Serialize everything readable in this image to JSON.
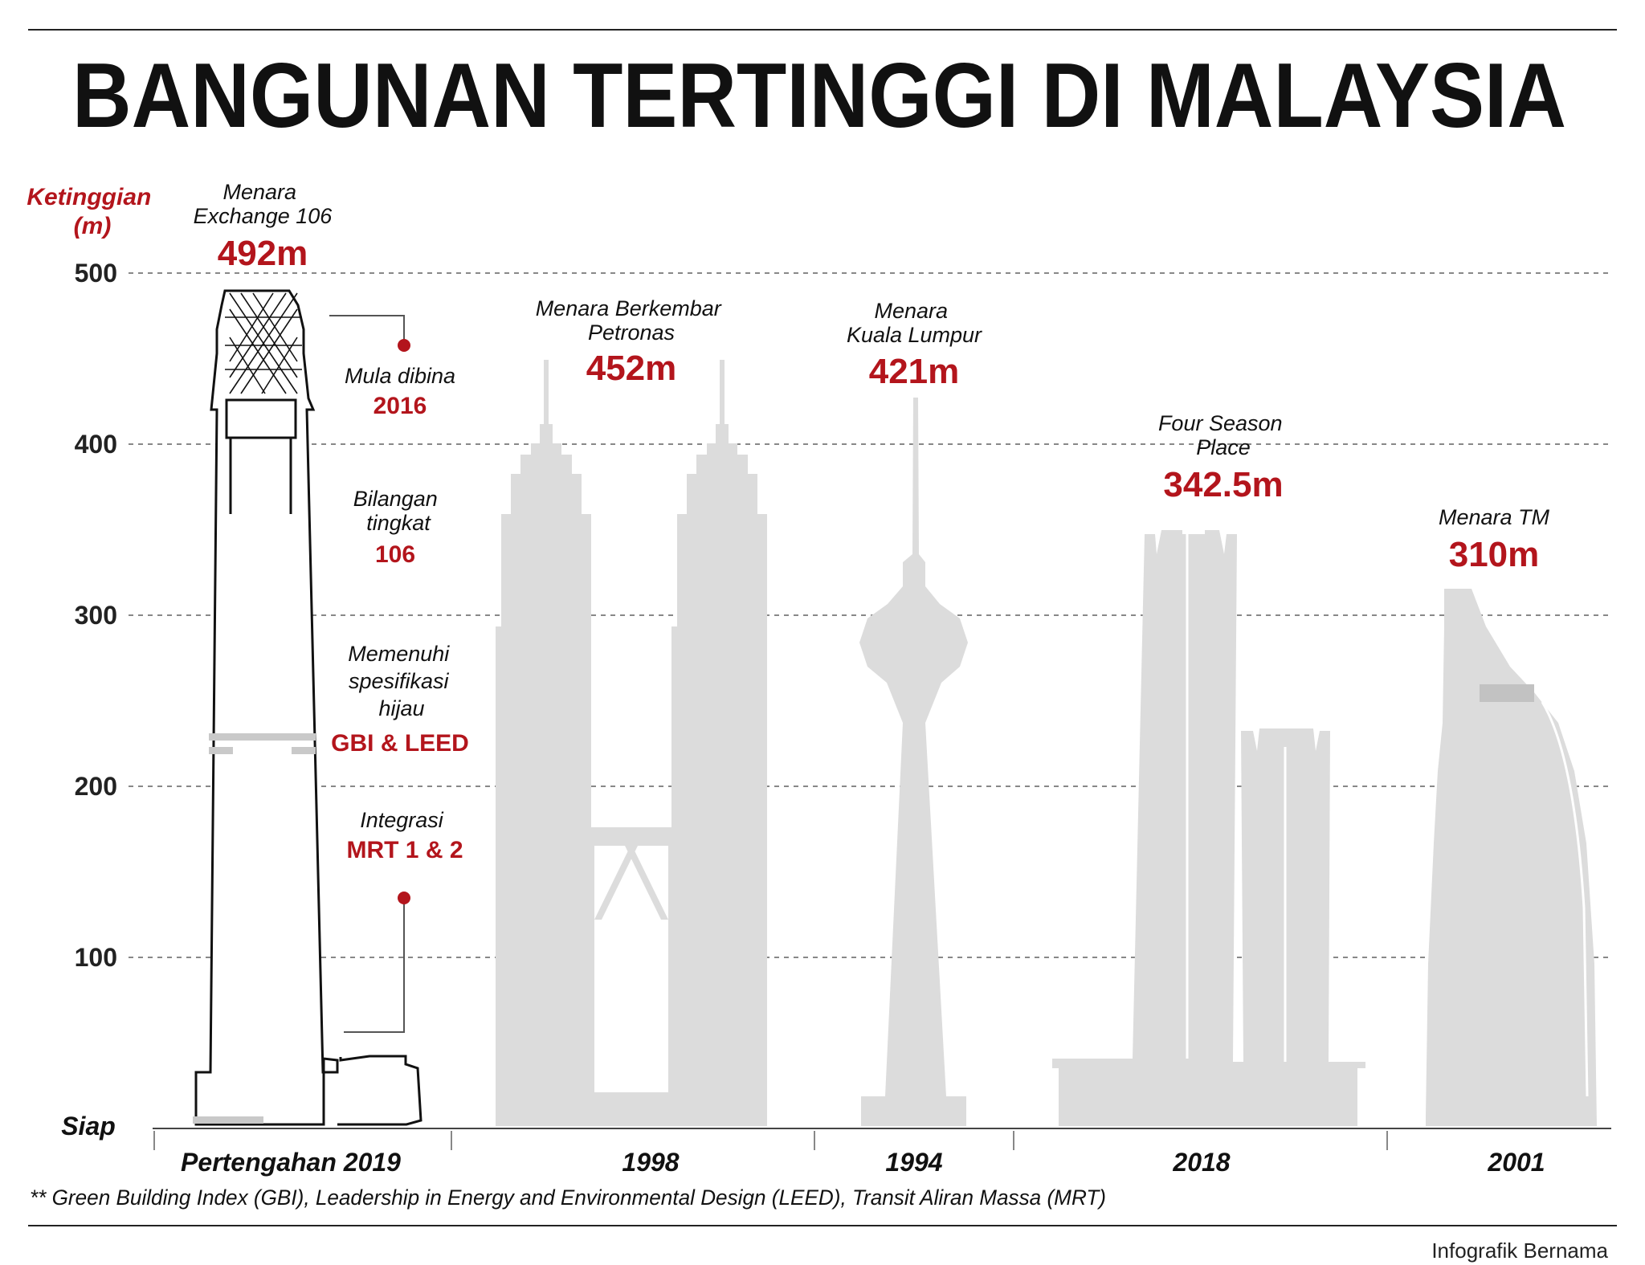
{
  "title": "BANGUNAN TERTINGGI DI MALAYSIA",
  "chart_data": {
    "type": "bar",
    "ylabel": "Ketinggian (m)",
    "ylabel_lines": [
      "Ketinggian",
      "(m)"
    ],
    "baseline_label": "Siap",
    "yticks": [
      100,
      200,
      300,
      400,
      500
    ],
    "ylim": [
      0,
      500
    ],
    "grid": true,
    "buildings": [
      {
        "name_lines": [
          "Menara",
          "Exchange 106"
        ],
        "height": 492,
        "height_label": "492m",
        "year": "Pertengahan 2019"
      },
      {
        "name_lines": [
          "Menara Berkembar",
          "Petronas"
        ],
        "height": 452,
        "height_label": "452m",
        "year": "1998"
      },
      {
        "name_lines": [
          "Menara",
          "Kuala Lumpur"
        ],
        "height": 421,
        "height_label": "421m",
        "year": "1994"
      },
      {
        "name_lines": [
          "Four Season",
          "Place"
        ],
        "height": 342.5,
        "height_label": "342.5m",
        "year": "2018"
      },
      {
        "name_lines": [
          "Menara TM"
        ],
        "height": 310,
        "height_label": "310m",
        "year": "2001"
      }
    ],
    "annotations": [
      {
        "label": "Mula dibina",
        "value": "2016"
      },
      {
        "label_lines": [
          "Bilangan",
          "tingkat"
        ],
        "value": "106"
      },
      {
        "label_lines": [
          "Memenuhi",
          "spesifikasi",
          "hijau"
        ],
        "value": "GBI & LEED"
      },
      {
        "label": "Integrasi",
        "value": "MRT 1 & 2"
      }
    ]
  },
  "footnote": "** Green Building Index (GBI), Leadership in Energy and Environmental Design (LEED), Transit Aliran Massa (MRT)",
  "credit": "Infografik Bernama",
  "colors": {
    "accent": "#b3151c",
    "building": "#dcdcdc",
    "text": "#111111"
  }
}
